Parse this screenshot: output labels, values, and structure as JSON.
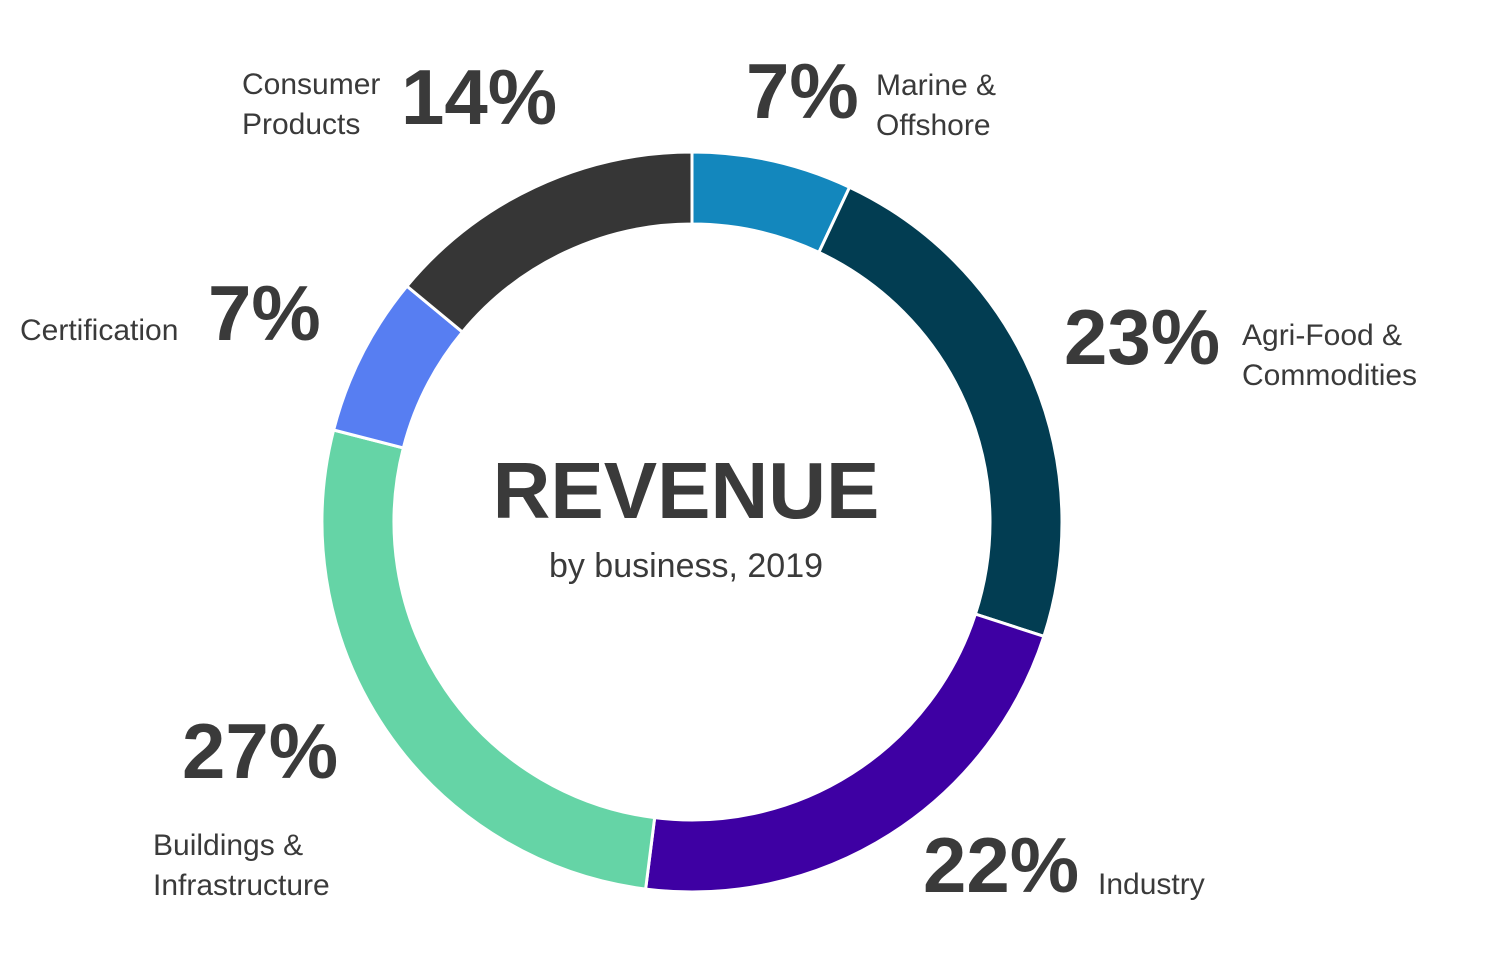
{
  "chart_data": {
    "type": "donut",
    "title": "REVENUE",
    "subtitle": "by business, 2019",
    "categories": [
      "Marine & Offshore",
      "Agri-Food & Commodities",
      "Industry",
      "Buildings & Infrastructure",
      "Certification",
      "Consumer Products"
    ],
    "values": [
      7,
      23,
      22,
      27,
      7,
      14
    ],
    "value_labels": [
      "7%",
      "23%",
      "22%",
      "27%",
      "7%",
      "14%"
    ],
    "colors": [
      "#1387bd",
      "#023d52",
      "#3e00a3",
      "#65d4a6",
      "#577ef2",
      "#363636"
    ]
  }
}
